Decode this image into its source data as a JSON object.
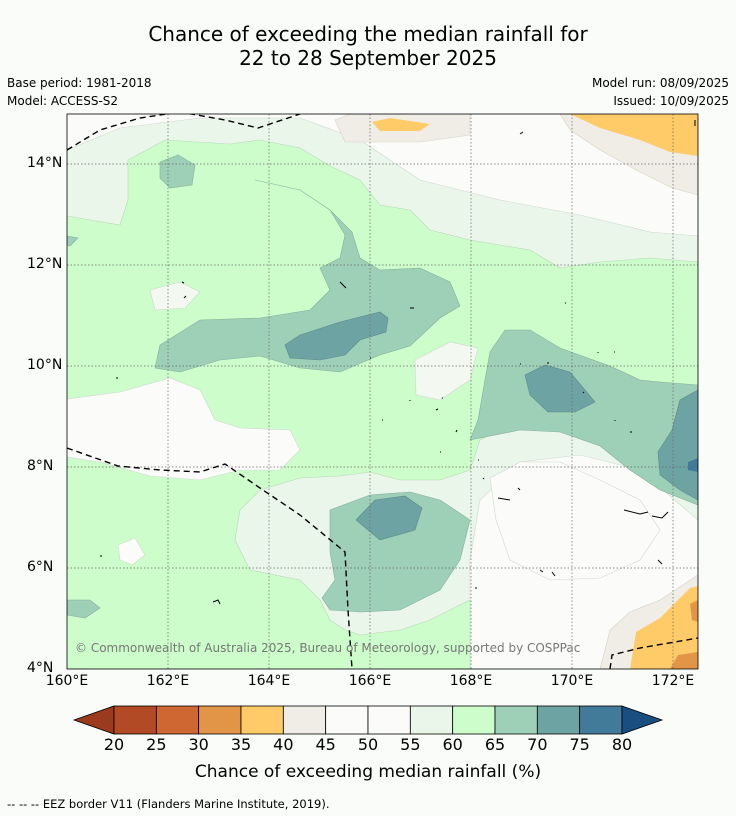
{
  "title": {
    "line1": "Chance of exceeding the median rainfall for",
    "line2": "22 to 28 September 2025"
  },
  "info": {
    "base_period": "Base period: 1981-2018",
    "model": "Model: ACCESS-S2",
    "model_run": "Model run: 08/09/2025",
    "issued": "Issued: 10/09/2025"
  },
  "map": {
    "x_ticks": [
      "160°E",
      "162°E",
      "164°E",
      "166°E",
      "168°E",
      "170°E",
      "172°E"
    ],
    "y_ticks": [
      "14°N",
      "12°N",
      "10°N",
      "8°N",
      "6°N",
      "4°N"
    ],
    "copyright": "© Commonwealth of Australia 2025, Bureau of Meteorology, supported by COSPPac"
  },
  "colorbar": {
    "labels": [
      "20",
      "25",
      "30",
      "35",
      "40",
      "45",
      "50",
      "55",
      "60",
      "65",
      "70",
      "75",
      "80"
    ],
    "colors": [
      "#9c3a1f",
      "#b24a26",
      "#cf6733",
      "#e29546",
      "#fecb68",
      "#efede6",
      "#fbfcfa",
      "#fbfcfa",
      "#eaf6ea",
      "#ccfdca",
      "#9ecfb7",
      "#6ea3a3",
      "#427a99",
      "#1a4d80"
    ],
    "title": "Chance of exceeding median rainfall (%)"
  },
  "footer": "--  --  -- EEZ border V11 (Flanders Marine Institute, 2019)."
}
